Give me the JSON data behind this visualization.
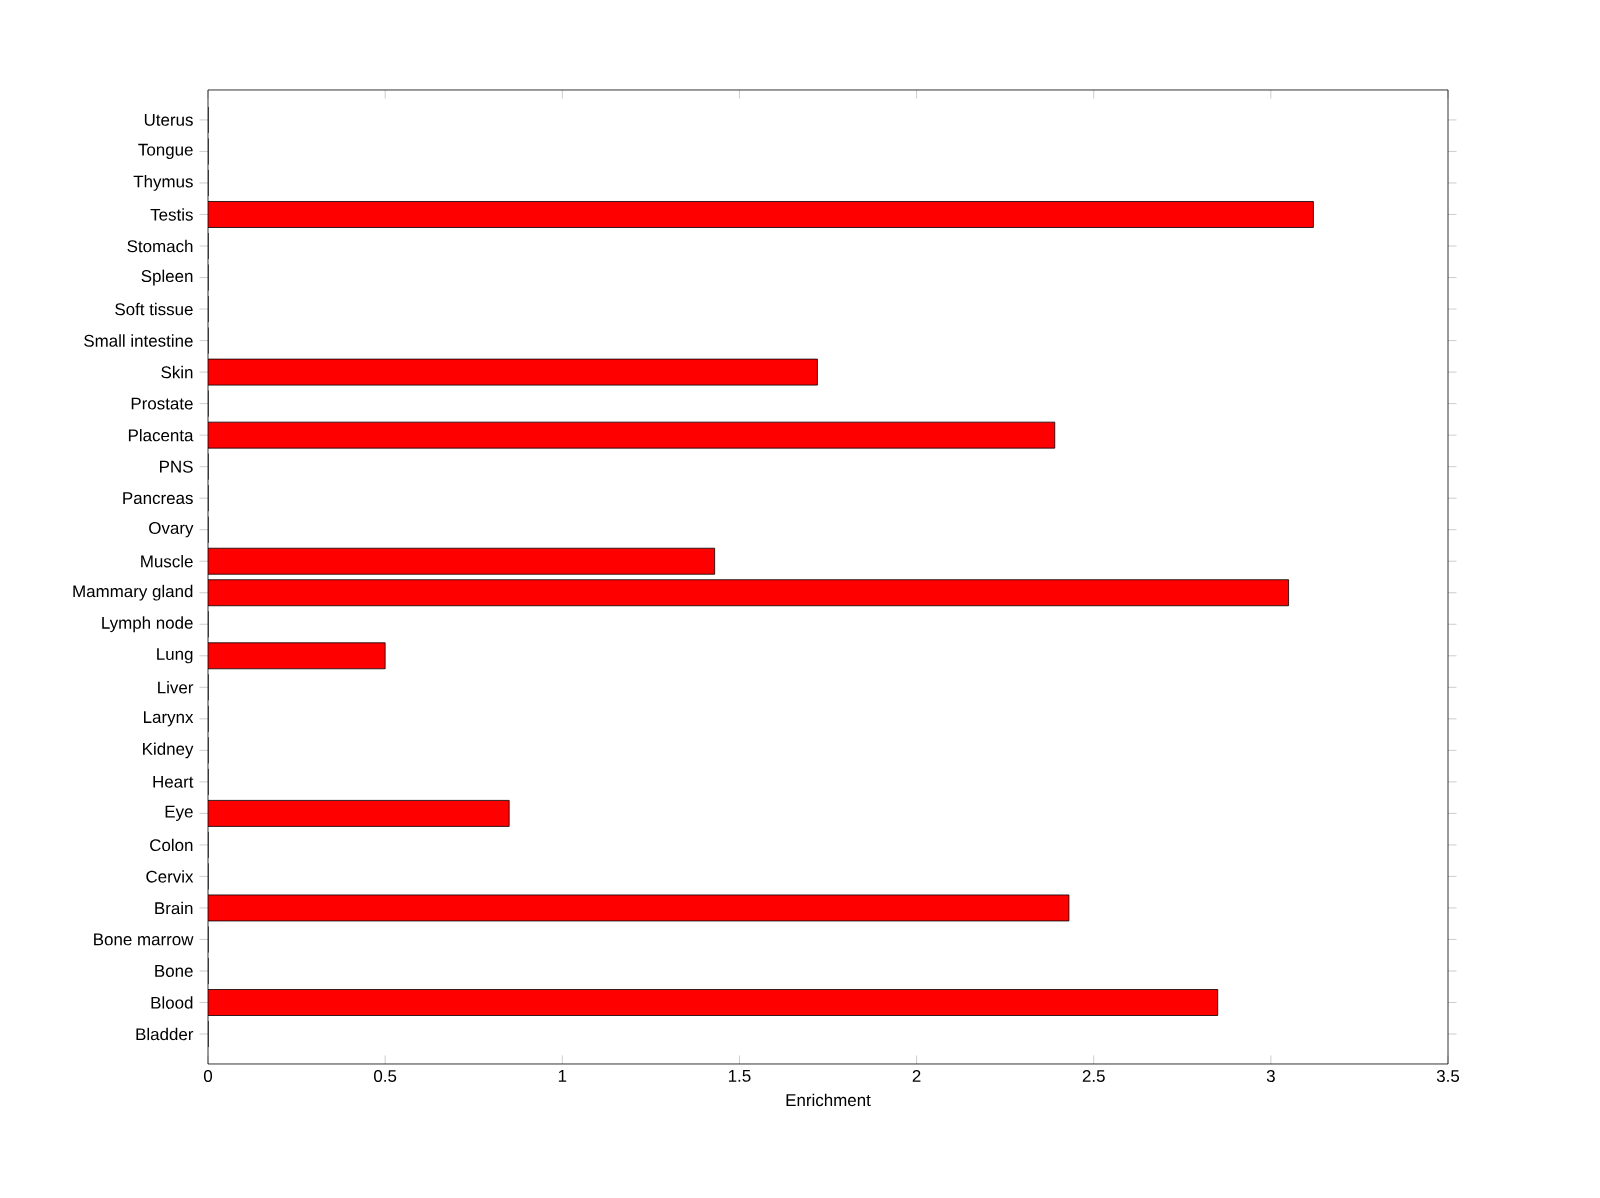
{
  "chart_data": {
    "type": "bar",
    "orientation": "horizontal",
    "xlabel": "Enrichment",
    "categories": [
      "Uterus",
      "Tongue",
      "Thymus",
      "Testis",
      "Stomach",
      "Spleen",
      "Soft tissue",
      "Small intestine",
      "Skin",
      "Prostate",
      "Placenta",
      "PNS",
      "Pancreas",
      "Ovary",
      "Muscle",
      "Mammary gland",
      "Lymph node",
      "Lung",
      "Liver",
      "Larynx",
      "Kidney",
      "Heart",
      "Eye",
      "Colon",
      "Cervix",
      "Brain",
      "Bone marrow",
      "Bone",
      "Blood",
      "Bladder"
    ],
    "values": [
      0,
      0,
      0,
      3.12,
      0,
      0,
      0,
      0,
      1.72,
      0,
      2.39,
      0,
      0,
      0,
      1.43,
      3.05,
      0,
      0.5,
      0,
      0,
      0,
      0,
      0.85,
      0,
      0,
      2.43,
      0,
      0,
      2.85,
      0
    ],
    "color": "#ff0000",
    "xlim": [
      0,
      3.5
    ],
    "xticks": [
      0,
      0.5,
      1,
      1.5,
      2,
      2.5,
      3,
      3.5
    ],
    "grid": false
  }
}
